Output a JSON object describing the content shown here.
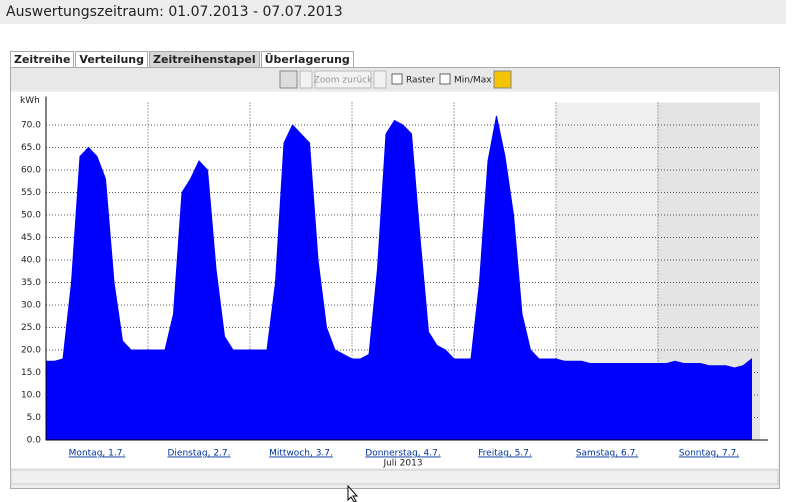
{
  "header": {
    "title": "Auswertungszeitraum: 01.07.2013 - 07.07.2013"
  },
  "tabs": [
    "Zeitreihe",
    "Verteilung",
    "Zeitreihenstapel",
    "Überlagerung"
  ],
  "toolbar": {
    "zoom": "Zoom zurück",
    "raster": "Raster",
    "minmax": "Min/Max"
  },
  "chart_data": {
    "type": "area",
    "y_unit": "kWh",
    "x_group_label": "Juli 2013",
    "color": "#0000ff",
    "x": [
      0,
      2,
      4,
      6,
      8,
      10,
      12,
      14,
      16,
      18,
      20,
      22,
      24,
      26,
      28,
      30,
      32,
      34,
      36,
      38,
      40,
      42,
      44,
      46,
      48,
      50,
      52,
      54,
      56,
      58,
      60,
      62,
      64,
      66,
      68,
      70,
      72,
      74,
      76,
      78,
      80,
      82,
      84,
      86,
      88,
      90,
      92,
      94,
      96,
      98,
      100,
      102,
      104,
      106,
      108,
      110,
      112,
      114,
      116,
      118,
      120,
      122,
      124,
      126,
      128,
      130,
      132,
      134,
      136,
      138,
      140,
      142,
      144,
      146,
      148,
      150,
      152,
      154,
      156,
      158,
      160,
      162,
      164,
      166
    ],
    "values": [
      17.5,
      17.5,
      18,
      35,
      63,
      65,
      63,
      58,
      35,
      22,
      20,
      20,
      20,
      20,
      20,
      28,
      55,
      58,
      62,
      60,
      38,
      23,
      20,
      20,
      20,
      20,
      20,
      35,
      66,
      70,
      68,
      66,
      40,
      25,
      20,
      19,
      18,
      18,
      19,
      38,
      68,
      71,
      70,
      68,
      45,
      24,
      21,
      20,
      18,
      18,
      18,
      35,
      62,
      72,
      63,
      50,
      28,
      20,
      18,
      18,
      18,
      17.5,
      17.5,
      17.5,
      17,
      17,
      17,
      17,
      17,
      17,
      17,
      17,
      17,
      17,
      17.5,
      17,
      17,
      17,
      16.5,
      16.5,
      16.5,
      16,
      16.5,
      18
    ],
    "xlim": [
      0,
      168
    ],
    "xticks": [
      {
        "value": 12,
        "label": "Montag, 1.7."
      },
      {
        "value": 36,
        "label": "Dienstag, 2.7."
      },
      {
        "value": 60,
        "label": "Mittwoch, 3.7."
      },
      {
        "value": 84,
        "label": "Donnerstag, 4.7."
      },
      {
        "value": 108,
        "label": "Freitag, 5.7."
      },
      {
        "value": 132,
        "label": "Samstag, 6.7."
      },
      {
        "value": 156,
        "label": "Sonntag, 7.7."
      }
    ],
    "xgrid": [
      24,
      48,
      72,
      96,
      120,
      144
    ],
    "shaded": [
      {
        "from": 120,
        "to": 144,
        "color": "#efefef"
      },
      {
        "from": 144,
        "to": 168,
        "color": "#e4e4e4"
      }
    ],
    "ylim": [
      0,
      75
    ],
    "yticks": [
      {
        "value": 0,
        "label": "0.0"
      },
      {
        "value": 5,
        "label": "5.0"
      },
      {
        "value": 10,
        "label": "10.0"
      },
      {
        "value": 15,
        "label": "15.0"
      },
      {
        "value": 20,
        "label": "20.0"
      },
      {
        "value": 25,
        "label": "25.0"
      },
      {
        "value": 30,
        "label": "30.0"
      },
      {
        "value": 35,
        "label": "35.0"
      },
      {
        "value": 40,
        "label": "40.0"
      },
      {
        "value": 45,
        "label": "45.0"
      },
      {
        "value": 50,
        "label": "50.0"
      },
      {
        "value": 55,
        "label": "55.0"
      },
      {
        "value": 60,
        "label": "60.0"
      },
      {
        "value": 65,
        "label": "65.0"
      },
      {
        "value": 70,
        "label": "70.0"
      }
    ],
    "grid": true
  }
}
